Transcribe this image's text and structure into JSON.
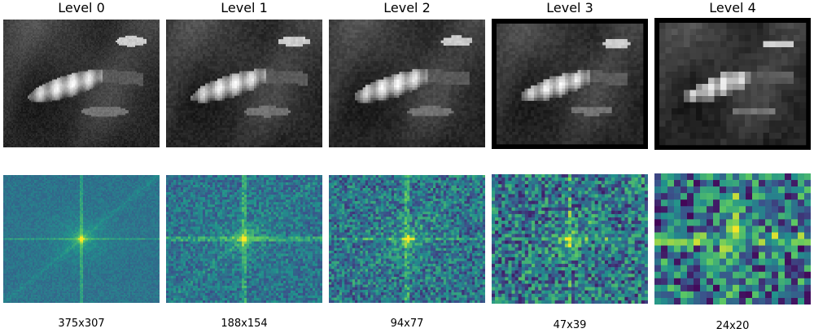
{
  "columns": [
    {
      "title": "Level 0",
      "size": "375x307",
      "dims": [
        375,
        307
      ],
      "cells": [
        96,
        79
      ]
    },
    {
      "title": "Level 1",
      "size": "188x154",
      "dims": [
        188,
        154
      ],
      "cells": [
        64,
        52
      ]
    },
    {
      "title": "Level 2",
      "size": "94x77",
      "dims": [
        94,
        77
      ],
      "cells": [
        60,
        49
      ]
    },
    {
      "title": "Level 3",
      "size": "47x39",
      "dims": [
        47,
        39
      ],
      "cells": [
        47,
        39
      ]
    },
    {
      "title": "Level 4",
      "size": "24x20",
      "dims": [
        24,
        20
      ],
      "cells": [
        24,
        20
      ]
    }
  ]
}
